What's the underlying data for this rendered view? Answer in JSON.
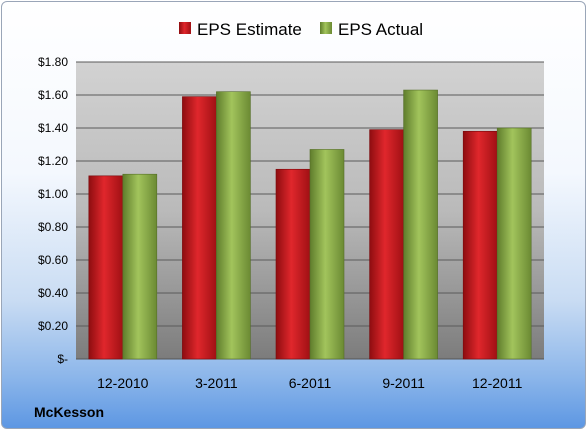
{
  "chart_data": {
    "type": "bar",
    "categories": [
      "12-2010",
      "3-2011",
      "6-2011",
      "9-2011",
      "12-2011"
    ],
    "series": [
      {
        "name": "EPS Estimate",
        "values": [
          1.11,
          1.59,
          1.15,
          1.39,
          1.38
        ],
        "color": "#c8171c"
      },
      {
        "name": "EPS Actual",
        "values": [
          1.12,
          1.62,
          1.27,
          1.63,
          1.4
        ],
        "color": "#8eb04a"
      }
    ],
    "yticks": [
      "$-",
      "$0.20",
      "$0.40",
      "$0.60",
      "$0.80",
      "$1.00",
      "$1.20",
      "$1.40",
      "$1.60",
      "$1.80"
    ],
    "ylim": [
      0,
      1.8
    ],
    "grid": true,
    "legend_position": "top"
  },
  "company": "McKesson"
}
